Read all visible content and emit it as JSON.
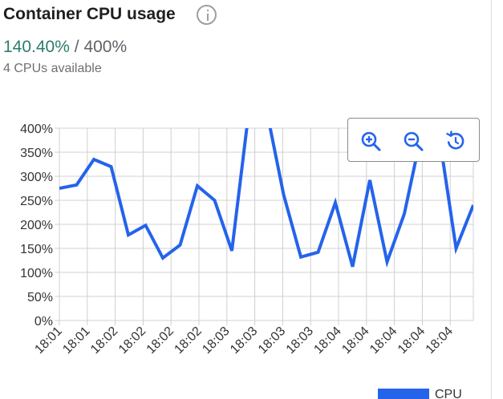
{
  "header": {
    "title": "Container CPU usage",
    "usage_value": "140.40%",
    "usage_separator": "/",
    "usage_total": "400%",
    "subtitle": "4 CPUs available"
  },
  "colors": {
    "line": "#2563eb",
    "usage_value": "#2e7d6e",
    "grid": "#d0d0d0"
  },
  "icons": {
    "info": "info-icon",
    "zoom_in": "zoom-in-icon",
    "zoom_out": "zoom-out-icon",
    "reset": "reset-zoom-icon"
  },
  "chart_data": {
    "type": "line",
    "ylim": [
      0,
      400
    ],
    "y_ticks": [
      0,
      50,
      100,
      150,
      200,
      250,
      300,
      350,
      400
    ],
    "y_tick_labels": [
      "0%",
      "50%",
      "100%",
      "150%",
      "200%",
      "250%",
      "300%",
      "350%",
      "400%"
    ],
    "x_tick_labels": [
      "18:01",
      "18:01",
      "18:02",
      "18:02",
      "18:02",
      "18:02",
      "18:03",
      "18:03",
      "18:03",
      "18:03",
      "18:04",
      "18:04",
      "18:04",
      "18:04",
      "18:04"
    ],
    "series": [
      {
        "name": "CPU",
        "values": [
          275,
          282,
          335,
          320,
          178,
          198,
          130,
          157,
          280,
          250,
          145,
          440,
          440,
          262,
          132,
          142,
          245,
          112,
          292,
          122,
          222,
          390,
          390,
          150,
          240
        ]
      }
    ],
    "legend": "bottom-right"
  }
}
